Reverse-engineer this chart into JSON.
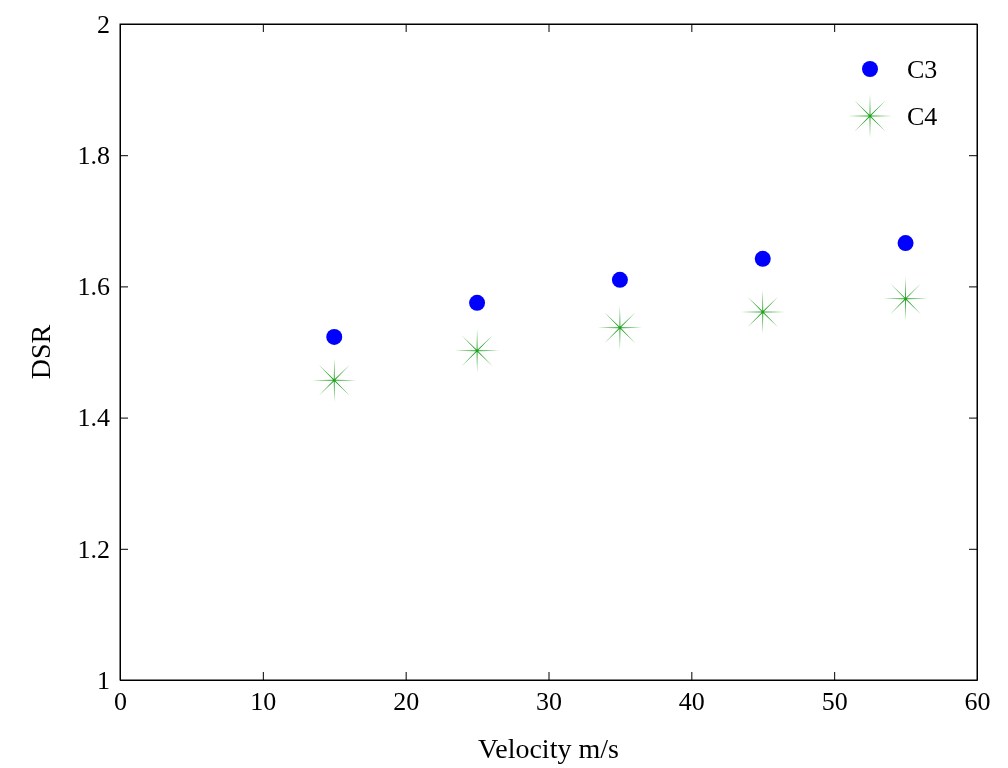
{
  "chart_data": {
    "type": "scatter",
    "xlabel": "Velocity m/s",
    "ylabel": "DSR",
    "x": [
      15,
      25,
      35,
      45,
      55
    ],
    "series": [
      {
        "name": "C3",
        "color": "#0000ff",
        "marker": "circle",
        "values": [
          1.523,
          1.575,
          1.61,
          1.642,
          1.666
        ]
      },
      {
        "name": "C4",
        "color": "#22a022",
        "marker": "star",
        "values": [
          1.457,
          1.502,
          1.537,
          1.561,
          1.581
        ]
      }
    ],
    "xlim": [
      0,
      60
    ],
    "xticks": [
      0,
      10,
      20,
      30,
      40,
      50,
      60
    ],
    "ylim": [
      1,
      2
    ],
    "yticks": [
      1,
      1.2,
      1.4,
      1.6,
      1.8,
      2
    ],
    "legend": "top right",
    "grid": false
  }
}
